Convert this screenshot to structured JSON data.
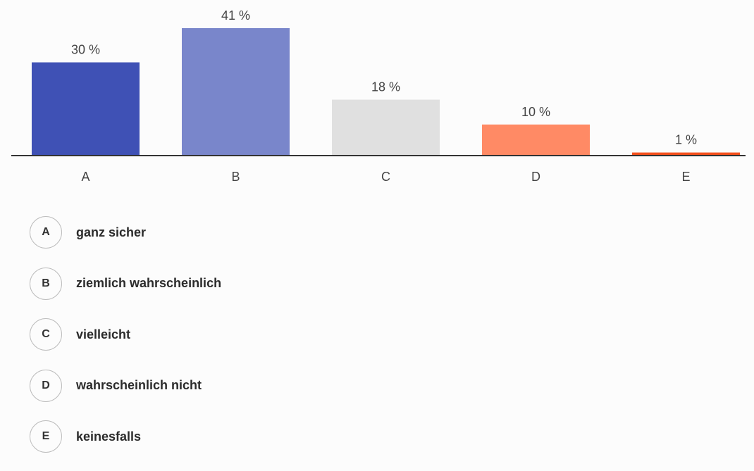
{
  "chart_data": {
    "type": "bar",
    "categories": [
      "A",
      "B",
      "C",
      "D",
      "E"
    ],
    "values": [
      30,
      41,
      18,
      10,
      1
    ],
    "value_labels": [
      "30 %",
      "41 %",
      "18 %",
      "10 %",
      "1 %"
    ],
    "colors": [
      "#3f51b5",
      "#7986cb",
      "#e0e0e0",
      "#ff8a65",
      "#f4511e"
    ],
    "axis_color": "#333333",
    "ylim": [
      0,
      41
    ],
    "grid": false,
    "title": "",
    "xlabel": "",
    "ylabel": ""
  },
  "legend": [
    {
      "letter": "A",
      "text": "ganz sicher"
    },
    {
      "letter": "B",
      "text": "ziemlich wahrscheinlich"
    },
    {
      "letter": "C",
      "text": "vielleicht"
    },
    {
      "letter": "D",
      "text": "wahrscheinlich nicht"
    },
    {
      "letter": "E",
      "text": "keinesfalls"
    }
  ]
}
